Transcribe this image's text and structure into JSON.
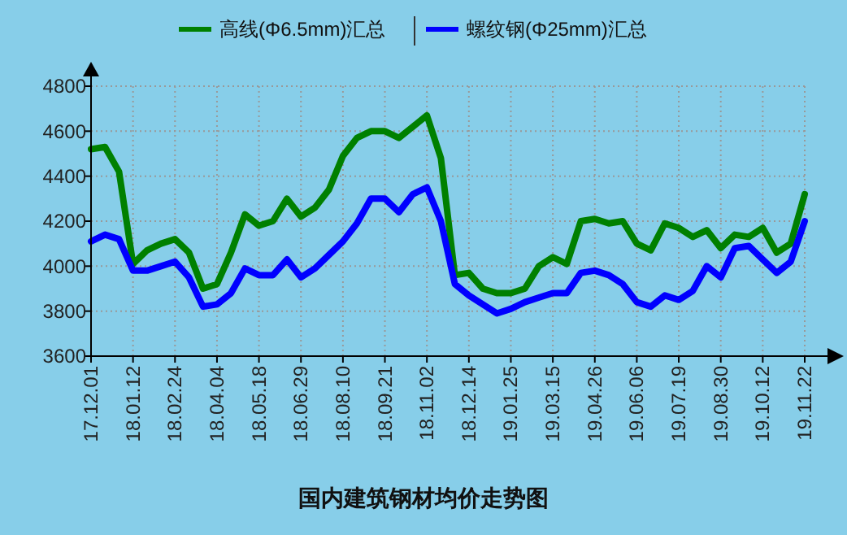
{
  "chart_data": {
    "type": "line",
    "title": "国内建筑钢材均价走势图",
    "categories": [
      "17.12.01",
      null,
      null,
      "18.01.12",
      null,
      null,
      "18.02.24",
      null,
      null,
      "18.04.04",
      null,
      null,
      "18.05.18",
      null,
      null,
      "18.06.29",
      null,
      null,
      "18.08.10",
      null,
      null,
      "18.09.21",
      null,
      null,
      "18.11.02",
      null,
      null,
      "18.12.14",
      null,
      null,
      "19.01.25",
      null,
      null,
      "19.03.15",
      null,
      null,
      "19.04.26",
      null,
      null,
      "19.06.06",
      null,
      null,
      "19.07.19",
      null,
      null,
      "19.08.30",
      null,
      null,
      "19.10.12",
      null,
      null,
      "19.11.22"
    ],
    "series": [
      {
        "name": "高线(Φ6.5mm)汇总",
        "color": "#008000",
        "values": [
          4520,
          4530,
          4420,
          4010,
          4070,
          4100,
          4120,
          4060,
          3900,
          3920,
          4060,
          4230,
          4180,
          4200,
          4300,
          4220,
          4260,
          4340,
          4490,
          4570,
          4600,
          4600,
          4570,
          4620,
          4670,
          4480,
          3960,
          3970,
          3900,
          3880,
          3880,
          3900,
          4000,
          4040,
          4010,
          4200,
          4210,
          4190,
          4200,
          4100,
          4070,
          4190,
          4170,
          4130,
          4160,
          4080,
          4140,
          4130,
          4170,
          4060,
          4100,
          4320
        ]
      },
      {
        "name": "螺纹钢(Φ25mm)汇总",
        "color": "#0000ff",
        "values": [
          4110,
          4140,
          4120,
          3980,
          3980,
          4000,
          4020,
          3950,
          3820,
          3830,
          3880,
          3990,
          3960,
          3960,
          4030,
          3950,
          3990,
          4050,
          4110,
          4190,
          4300,
          4300,
          4240,
          4320,
          4350,
          4200,
          3920,
          3870,
          3830,
          3790,
          3810,
          3840,
          3860,
          3880,
          3880,
          3970,
          3980,
          3960,
          3920,
          3840,
          3820,
          3870,
          3850,
          3890,
          4000,
          3950,
          4080,
          4090,
          4030,
          3970,
          4020,
          4200
        ]
      }
    ],
    "ylim": [
      3600,
      4800
    ],
    "yticks": [
      3600,
      3800,
      4000,
      4200,
      4400,
      4600,
      4800
    ],
    "grid": true,
    "legend": "top",
    "line_style": "solid",
    "marker": "none"
  }
}
